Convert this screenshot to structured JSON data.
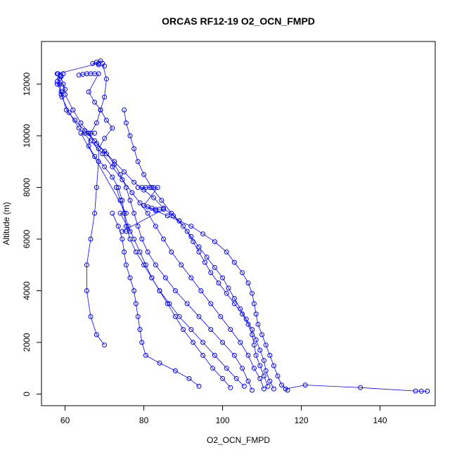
{
  "chart_data": {
    "type": "scatter",
    "title": "ORCAS RF12-19 O2_OCN_FMPD",
    "xlabel": "O2_OCN_FMPD",
    "ylabel": "Altitude (m)",
    "xlim": [
      54,
      154
    ],
    "ylim": [
      -450,
      13650
    ],
    "xticks": [
      60,
      80,
      100,
      120,
      140
    ],
    "yticks": [
      0,
      2000,
      4000,
      6000,
      8000,
      10000,
      12000
    ],
    "grid": false,
    "colors": {
      "series": "#0000ff",
      "axis": "#000000"
    },
    "series": [
      {
        "points": [
          [
            58.2,
            12400
          ],
          [
            58.6,
            12000
          ],
          [
            59.0,
            11700
          ],
          [
            60.3,
            11000
          ],
          [
            62.5,
            10600
          ],
          [
            65.0,
            10200
          ],
          [
            67.5,
            9800
          ],
          [
            70.0,
            9400
          ],
          [
            72.5,
            9000
          ],
          [
            75.0,
            8600
          ],
          [
            77.5,
            8200
          ],
          [
            80.0,
            7900
          ],
          [
            82.5,
            7600
          ],
          [
            85.0,
            7200
          ],
          [
            87.5,
            6900
          ],
          [
            90.0,
            6500
          ],
          [
            92.0,
            6100
          ],
          [
            94.0,
            5700
          ],
          [
            96.0,
            5300
          ],
          [
            98.0,
            4900
          ],
          [
            100.0,
            4500
          ],
          [
            101.5,
            4100
          ],
          [
            103.0,
            3700
          ],
          [
            104.5,
            3300
          ],
          [
            106.0,
            2900
          ],
          [
            107.5,
            2500
          ],
          [
            108.5,
            2100
          ],
          [
            109.5,
            1700
          ],
          [
            110.5,
            1300
          ],
          [
            111.0,
            900
          ],
          [
            112.0,
            500
          ],
          [
            113.0,
            200
          ]
        ]
      },
      {
        "points": [
          [
            58.0,
            12100
          ],
          [
            59.2,
            11500
          ],
          [
            61.0,
            10900
          ],
          [
            63.5,
            10300
          ],
          [
            66.5,
            9800
          ],
          [
            69.5,
            9300
          ],
          [
            72.0,
            8800
          ],
          [
            74.5,
            8300
          ],
          [
            77.0,
            7800
          ],
          [
            79.0,
            7400
          ],
          [
            81.0,
            7000
          ],
          [
            83.0,
            6500
          ],
          [
            85.0,
            6000
          ],
          [
            87.0,
            5500
          ],
          [
            89.5,
            5000
          ],
          [
            92.0,
            4500
          ],
          [
            94.5,
            4000
          ],
          [
            97.0,
            3500
          ],
          [
            99.5,
            3000
          ],
          [
            102.0,
            2500
          ],
          [
            104.5,
            2000
          ],
          [
            106.5,
            1500
          ],
          [
            108.0,
            1000
          ],
          [
            109.5,
            600
          ],
          [
            110.5,
            200
          ]
        ]
      },
      {
        "points": [
          [
            59.0,
            12300
          ],
          [
            60.0,
            11600
          ],
          [
            62.0,
            11000
          ],
          [
            64.0,
            10500
          ],
          [
            66.0,
            10100
          ],
          [
            68.0,
            9700
          ],
          [
            70.5,
            9300
          ],
          [
            72.5,
            8900
          ],
          [
            74.0,
            8500
          ],
          [
            75.5,
            8000
          ],
          [
            76.5,
            7500
          ],
          [
            77.5,
            7000
          ],
          [
            78.5,
            6500
          ],
          [
            79.5,
            6000
          ],
          [
            81.0,
            5500
          ],
          [
            83.0,
            5000
          ],
          [
            85.5,
            4500
          ],
          [
            88.0,
            4000
          ],
          [
            91.0,
            3500
          ],
          [
            94.0,
            3000
          ],
          [
            97.0,
            2500
          ],
          [
            100.0,
            2000
          ],
          [
            103.0,
            1500
          ],
          [
            105.0,
            1000
          ],
          [
            106.5,
            500
          ],
          [
            107.5,
            150
          ]
        ]
      },
      {
        "points": [
          [
            69.5,
            12800
          ],
          [
            70.5,
            12200
          ],
          [
            70.0,
            11500
          ],
          [
            69.0,
            11000
          ],
          [
            68.0,
            10500
          ],
          [
            66.5,
            10100
          ],
          [
            66.0,
            9600
          ],
          [
            67.5,
            9200
          ],
          [
            70.0,
            8800
          ],
          [
            72.0,
            8400
          ],
          [
            73.5,
            8000
          ],
          [
            74.5,
            7500
          ],
          [
            75.0,
            7000
          ],
          [
            75.5,
            6500
          ],
          [
            76.5,
            6000
          ],
          [
            78.0,
            5500
          ],
          [
            80.0,
            5000
          ],
          [
            82.0,
            4500
          ],
          [
            84.0,
            4000
          ],
          [
            86.5,
            3500
          ],
          [
            89.0,
            3000
          ],
          [
            92.0,
            2500
          ],
          [
            95.0,
            2000
          ],
          [
            98.0,
            1500
          ],
          [
            101.0,
            1000
          ],
          [
            103.5,
            600
          ],
          [
            105.5,
            300
          ]
        ]
      },
      {
        "points": [
          [
            63.5,
            12350
          ],
          [
            64.5,
            12380
          ],
          [
            65.5,
            12400
          ],
          [
            66.5,
            12400
          ],
          [
            67.5,
            12400
          ],
          [
            68.5,
            12400
          ],
          [
            66.0,
            11700
          ],
          [
            67.5,
            11300
          ],
          [
            69.0,
            11000
          ],
          [
            70.5,
            10600
          ],
          [
            72.0,
            10300
          ],
          [
            70.0,
            9900
          ],
          [
            68.5,
            9500
          ],
          [
            68.5,
            9000
          ],
          [
            68.0,
            8000
          ],
          [
            67.5,
            7000
          ],
          [
            66.5,
            6000
          ],
          [
            65.5,
            5000
          ],
          [
            65.5,
            4000
          ],
          [
            66.5,
            3000
          ],
          [
            68.0,
            2300
          ],
          [
            70.0,
            1900
          ]
        ]
      },
      {
        "points": [
          [
            75.0,
            11000
          ],
          [
            75.5,
            10500
          ],
          [
            76.5,
            10000
          ],
          [
            77.5,
            9500
          ],
          [
            78.5,
            9000
          ],
          [
            80.0,
            8500
          ],
          [
            82.0,
            8000
          ],
          [
            84.5,
            7500
          ],
          [
            87.0,
            7000
          ],
          [
            89.0,
            6700
          ],
          [
            91.0,
            6300
          ],
          [
            92.5,
            5900
          ],
          [
            94.0,
            5500
          ],
          [
            95.5,
            5100
          ],
          [
            97.0,
            4700
          ],
          [
            99.0,
            4300
          ],
          [
            101.0,
            3900
          ],
          [
            103.0,
            3500
          ],
          [
            105.0,
            3100
          ],
          [
            106.5,
            2700
          ],
          [
            107.5,
            2300
          ],
          [
            108.0,
            1900
          ],
          [
            108.5,
            1500
          ],
          [
            109.5,
            1100
          ],
          [
            110.5,
            700
          ],
          [
            111.5,
            300
          ]
        ]
      },
      {
        "points": [
          [
            73.0,
            8000
          ],
          [
            74.0,
            7500
          ],
          [
            75.0,
            7000
          ],
          [
            76.0,
            6500
          ],
          [
            77.5,
            6000
          ],
          [
            79.0,
            5500
          ],
          [
            80.5,
            5000
          ],
          [
            82.0,
            4500
          ],
          [
            84.0,
            4000
          ],
          [
            86.0,
            3500
          ],
          [
            88.0,
            3000
          ],
          [
            90.0,
            2500
          ],
          [
            92.5,
            2000
          ],
          [
            95.0,
            1500
          ],
          [
            97.5,
            1000
          ],
          [
            100.0,
            600
          ],
          [
            102.0,
            250
          ]
        ]
      },
      {
        "points": [
          [
            72.0,
            7000
          ],
          [
            73.5,
            6500
          ],
          [
            74.5,
            6000
          ],
          [
            75.0,
            5500
          ],
          [
            75.5,
            5000
          ],
          [
            76.5,
            4500
          ],
          [
            77.5,
            4000
          ],
          [
            78.0,
            3500
          ],
          [
            78.5,
            3000
          ],
          [
            79.0,
            2500
          ],
          [
            79.5,
            2000
          ],
          [
            80.5,
            1500
          ],
          [
            84.0,
            1200
          ],
          [
            88.0,
            900
          ],
          [
            91.5,
            600
          ],
          [
            94.0,
            300
          ]
        ]
      },
      {
        "points": [
          [
            80.0,
            7300
          ],
          [
            83.0,
            7100
          ],
          [
            86.0,
            6900
          ],
          [
            89.0,
            6700
          ],
          [
            92.0,
            6500
          ],
          [
            95.0,
            6200
          ],
          [
            98.0,
            5900
          ],
          [
            101.0,
            5500
          ],
          [
            103.0,
            5100
          ],
          [
            105.0,
            4700
          ],
          [
            106.5,
            4300
          ],
          [
            107.5,
            3900
          ],
          [
            108.0,
            3500
          ],
          [
            108.5,
            3100
          ],
          [
            109.0,
            2700
          ],
          [
            110.0,
            2300
          ],
          [
            111.0,
            1900
          ],
          [
            112.0,
            1500
          ],
          [
            113.0,
            1100
          ],
          [
            114.0,
            700
          ],
          [
            115.0,
            350
          ],
          [
            116.5,
            150
          ]
        ]
      },
      {
        "points": [
          [
            116.0,
            200
          ],
          [
            121.0,
            350
          ],
          [
            135.0,
            250
          ],
          [
            149.0,
            120
          ],
          [
            150.5,
            110
          ],
          [
            152.0,
            110
          ]
        ]
      },
      {
        "points": [
          [
            78.5,
            8000
          ],
          [
            79.5,
            8000
          ],
          [
            80.5,
            8000
          ],
          [
            81.5,
            8000
          ],
          [
            82.5,
            8000
          ],
          [
            83.5,
            8000
          ],
          [
            80.0,
            7300
          ],
          [
            81.0,
            7250
          ],
          [
            82.0,
            7200
          ],
          [
            83.0,
            7150
          ],
          [
            84.0,
            7150
          ],
          [
            85.0,
            7150
          ],
          [
            74.5,
            6300
          ],
          [
            75.5,
            6300
          ],
          [
            76.5,
            6300
          ],
          [
            74.0,
            7000
          ],
          [
            75.5,
            7000
          ],
          [
            64.0,
            10100
          ],
          [
            65.0,
            10100
          ],
          [
            66.0,
            10100
          ],
          [
            67.5,
            10100
          ]
        ]
      },
      {
        "points": [
          [
            58.0,
            12000
          ],
          [
            59.5,
            12000
          ],
          [
            60.0,
            11800
          ],
          [
            59.0,
            11600
          ],
          [
            58.5,
            12200
          ],
          [
            58.8,
            12300
          ],
          [
            59.5,
            12400
          ],
          [
            58.0,
            12400
          ],
          [
            68.5,
            12800
          ],
          [
            69.0,
            12900
          ],
          [
            68.0,
            12850
          ],
          [
            67.0,
            12800
          ],
          [
            70.0,
            12700
          ],
          [
            68.5,
            12750
          ]
        ]
      }
    ]
  }
}
